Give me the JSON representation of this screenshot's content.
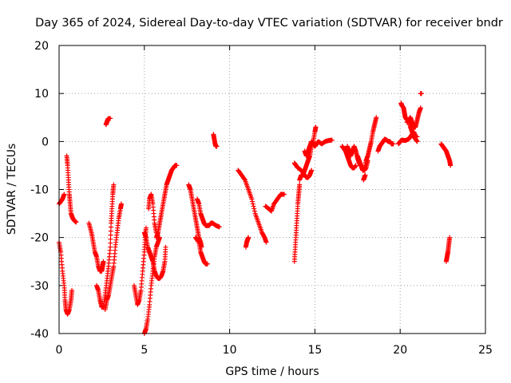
{
  "chart_data": {
    "type": "scatter",
    "title": "Day 365 of 2024, Sidereal Day-to-day VTEC variation (SDTVAR) for receiver bndr",
    "xlabel": "GPS time / hours",
    "ylabel": "SDTVAR / TECUs",
    "xlim": [
      0,
      25
    ],
    "ylim": [
      -40,
      20
    ],
    "xticks": [
      0,
      5,
      10,
      15,
      20,
      25
    ],
    "yticks": [
      -40,
      -30,
      -20,
      -10,
      0,
      10,
      20
    ],
    "xtick_labels": [
      "0",
      "5",
      "10",
      "15",
      "20",
      "25"
    ],
    "ytick_labels": [
      "-40",
      "-30",
      "-20",
      "-10",
      "0",
      "10",
      "20"
    ],
    "grid": true,
    "marker": "+",
    "series_color": "#ff0000",
    "tracks": [
      [
        [
          0.0,
          -13
        ],
        [
          0.1,
          -12.5
        ],
        [
          0.2,
          -12
        ],
        [
          0.3,
          -11
        ]
      ],
      [
        [
          0.0,
          -21
        ],
        [
          0.1,
          -23
        ],
        [
          0.2,
          -27
        ],
        [
          0.3,
          -30
        ],
        [
          0.35,
          -33
        ],
        [
          0.4,
          -35
        ],
        [
          0.5,
          -36
        ],
        [
          0.6,
          -35
        ],
        [
          0.7,
          -33
        ],
        [
          0.75,
          -31
        ]
      ],
      [
        [
          0.45,
          -3
        ],
        [
          0.5,
          -5
        ],
        [
          0.55,
          -8
        ],
        [
          0.6,
          -11
        ],
        [
          0.65,
          -13
        ],
        [
          0.7,
          -15
        ],
        [
          0.8,
          -16
        ],
        [
          0.9,
          -16.5
        ],
        [
          1.0,
          -16.8
        ]
      ],
      [
        [
          1.75,
          -17
        ],
        [
          1.9,
          -19
        ],
        [
          2.0,
          -21
        ],
        [
          2.1,
          -23
        ],
        [
          2.2,
          -24
        ],
        [
          2.3,
          -26
        ],
        [
          2.4,
          -27
        ],
        [
          2.5,
          -27
        ],
        [
          2.55,
          -26
        ],
        [
          2.6,
          -25
        ]
      ],
      [
        [
          2.2,
          -30
        ],
        [
          2.3,
          -31
        ],
        [
          2.4,
          -33
        ],
        [
          2.5,
          -34.5
        ],
        [
          2.6,
          -34.5
        ],
        [
          2.7,
          -32
        ],
        [
          2.8,
          -29
        ],
        [
          2.9,
          -26
        ],
        [
          3.0,
          -22
        ],
        [
          3.05,
          -17
        ],
        [
          3.1,
          -14
        ],
        [
          3.15,
          -11
        ],
        [
          3.2,
          -9
        ]
      ],
      [
        [
          2.7,
          -35
        ],
        [
          2.8,
          -33
        ],
        [
          2.9,
          -32
        ],
        [
          3.0,
          -30
        ],
        [
          3.1,
          -28
        ],
        [
          3.2,
          -26
        ],
        [
          3.3,
          -22
        ],
        [
          3.4,
          -19
        ],
        [
          3.5,
          -16
        ],
        [
          3.6,
          -14
        ],
        [
          3.65,
          -13
        ]
      ],
      [
        [
          2.75,
          3.5
        ],
        [
          2.8,
          4
        ],
        [
          2.85,
          4.5
        ],
        [
          2.9,
          4.8
        ],
        [
          3.0,
          4.8
        ]
      ],
      [
        [
          4.4,
          -30
        ],
        [
          4.5,
          -32
        ],
        [
          4.6,
          -34
        ],
        [
          4.7,
          -33
        ],
        [
          4.8,
          -31
        ],
        [
          4.9,
          -27
        ],
        [
          5.0,
          -23
        ],
        [
          5.05,
          -20
        ],
        [
          5.1,
          -18
        ]
      ],
      [
        [
          5.0,
          -40
        ],
        [
          5.1,
          -39
        ],
        [
          5.2,
          -37
        ],
        [
          5.3,
          -34
        ],
        [
          5.4,
          -30
        ],
        [
          5.5,
          -27
        ],
        [
          5.6,
          -24
        ],
        [
          5.7,
          -22
        ],
        [
          5.8,
          -21
        ],
        [
          5.9,
          -20
        ]
      ],
      [
        [
          5.0,
          -19
        ],
        [
          5.1,
          -20
        ],
        [
          5.2,
          -22
        ],
        [
          5.3,
          -23
        ],
        [
          5.4,
          -24
        ],
        [
          5.5,
          -25
        ],
        [
          5.6,
          -27
        ],
        [
          5.7,
          -28
        ],
        [
          5.8,
          -28.5
        ],
        [
          5.9,
          -28.5
        ],
        [
          6.0,
          -28
        ],
        [
          6.1,
          -27
        ],
        [
          6.2,
          -25
        ],
        [
          6.25,
          -22
        ]
      ],
      [
        [
          5.25,
          -14
        ],
        [
          5.3,
          -12
        ],
        [
          5.4,
          -11
        ],
        [
          5.5,
          -13
        ],
        [
          5.6,
          -17
        ],
        [
          5.7,
          -19
        ]
      ],
      [
        [
          5.7,
          -20
        ],
        [
          5.8,
          -19
        ],
        [
          5.9,
          -17
        ],
        [
          6.0,
          -15
        ],
        [
          6.1,
          -13
        ],
        [
          6.2,
          -11
        ],
        [
          6.3,
          -9
        ],
        [
          6.4,
          -8
        ],
        [
          6.5,
          -7
        ],
        [
          6.6,
          -6
        ],
        [
          6.7,
          -5.5
        ],
        [
          6.8,
          -5
        ],
        [
          6.9,
          -5
        ]
      ],
      [
        [
          7.6,
          -9
        ],
        [
          7.7,
          -10
        ],
        [
          7.8,
          -12
        ],
        [
          7.9,
          -14
        ],
        [
          8.0,
          -16
        ],
        [
          8.1,
          -18
        ],
        [
          8.2,
          -20
        ],
        [
          8.3,
          -21
        ],
        [
          8.35,
          -22
        ]
      ],
      [
        [
          8.0,
          -20
        ],
        [
          8.1,
          -20.5
        ],
        [
          8.2,
          -21
        ],
        [
          8.3,
          -23
        ],
        [
          8.4,
          -24
        ],
        [
          8.5,
          -25
        ],
        [
          8.6,
          -25.5
        ],
        [
          8.7,
          -25.5
        ]
      ],
      [
        [
          8.1,
          -12
        ],
        [
          8.2,
          -13
        ],
        [
          8.3,
          -15
        ],
        [
          8.4,
          -16
        ],
        [
          8.5,
          -17
        ],
        [
          8.6,
          -17.5
        ],
        [
          8.7,
          -17.5
        ],
        [
          8.8,
          -17.5
        ],
        [
          8.9,
          -17
        ],
        [
          9.0,
          -17
        ],
        [
          9.2,
          -17.5
        ],
        [
          9.4,
          -17.8
        ]
      ],
      [
        [
          9.05,
          1.5
        ],
        [
          9.1,
          0.5
        ],
        [
          9.15,
          -0.5
        ],
        [
          9.2,
          -1
        ],
        [
          9.25,
          -1
        ]
      ],
      [
        [
          10.5,
          -6
        ],
        [
          10.7,
          -7
        ],
        [
          10.9,
          -8
        ],
        [
          11.1,
          -10
        ],
        [
          11.3,
          -12
        ],
        [
          11.5,
          -15
        ],
        [
          11.7,
          -17
        ],
        [
          11.9,
          -19
        ],
        [
          12.05,
          -20
        ],
        [
          12.15,
          -21
        ]
      ],
      [
        [
          10.95,
          -22
        ],
        [
          11.0,
          -21
        ],
        [
          11.05,
          -20.5
        ],
        [
          11.1,
          -20
        ]
      ],
      [
        [
          12.1,
          -13.5
        ],
        [
          12.3,
          -14
        ],
        [
          12.45,
          -14.5
        ],
        [
          12.6,
          -13
        ],
        [
          12.8,
          -12
        ],
        [
          13.0,
          -11
        ],
        [
          13.2,
          -11
        ]
      ],
      [
        [
          13.8,
          -25
        ],
        [
          13.85,
          -22
        ],
        [
          13.9,
          -19
        ],
        [
          13.95,
          -16
        ],
        [
          14.0,
          -13
        ],
        [
          14.05,
          -11
        ],
        [
          14.1,
          -9
        ]
      ],
      [
        [
          13.8,
          -4.5
        ],
        [
          13.9,
          -5
        ],
        [
          14.0,
          -5.5
        ],
        [
          14.2,
          -6
        ],
        [
          14.4,
          -7
        ],
        [
          14.5,
          -7.5
        ],
        [
          14.6,
          -7.5
        ],
        [
          14.7,
          -7
        ],
        [
          14.8,
          -6
        ]
      ],
      [
        [
          14.1,
          -8
        ],
        [
          14.2,
          -7
        ],
        [
          14.3,
          -7
        ],
        [
          14.4,
          -6
        ],
        [
          14.5,
          -5
        ],
        [
          14.6,
          -4
        ],
        [
          14.7,
          -3
        ],
        [
          14.8,
          -1
        ],
        [
          14.9,
          0
        ],
        [
          15.0,
          2
        ],
        [
          15.05,
          3
        ]
      ],
      [
        [
          14.4,
          -2
        ],
        [
          14.5,
          -3
        ],
        [
          14.6,
          -2
        ],
        [
          14.7,
          -1
        ],
        [
          14.8,
          0
        ],
        [
          14.9,
          -0.5
        ],
        [
          15.0,
          -1
        ],
        [
          15.1,
          -0.5
        ],
        [
          15.2,
          0
        ],
        [
          15.4,
          -0.5
        ],
        [
          15.6,
          0
        ],
        [
          15.8,
          0.2
        ],
        [
          16.0,
          0.3
        ]
      ],
      [
        [
          16.6,
          -1
        ],
        [
          16.7,
          -1.5
        ],
        [
          16.8,
          -2
        ],
        [
          16.9,
          -3
        ],
        [
          17.0,
          -4
        ],
        [
          17.1,
          -5
        ],
        [
          17.2,
          -5.5
        ],
        [
          17.3,
          -5.5
        ],
        [
          17.4,
          -5
        ]
      ],
      [
        [
          16.9,
          -1
        ],
        [
          17.0,
          -2
        ],
        [
          17.1,
          -3
        ],
        [
          17.2,
          -2
        ],
        [
          17.3,
          -1
        ],
        [
          17.4,
          -2
        ],
        [
          17.5,
          -3.5
        ],
        [
          17.6,
          -4.5
        ],
        [
          17.7,
          -5
        ],
        [
          17.8,
          -5.5
        ],
        [
          17.9,
          -6
        ],
        [
          18.0,
          -5.5
        ],
        [
          18.1,
          -4
        ]
      ],
      [
        [
          17.85,
          -8
        ],
        [
          17.9,
          -7.5
        ],
        [
          17.95,
          -7
        ]
      ],
      [
        [
          17.5,
          -3
        ],
        [
          17.6,
          -4
        ],
        [
          17.7,
          -5
        ],
        [
          17.8,
          -6
        ],
        [
          17.9,
          -6
        ],
        [
          18.0,
          -4
        ],
        [
          18.1,
          -3
        ],
        [
          18.2,
          -1.5
        ],
        [
          18.3,
          0
        ],
        [
          18.4,
          2
        ],
        [
          18.5,
          3.5
        ],
        [
          18.6,
          5
        ]
      ],
      [
        [
          18.7,
          -2
        ],
        [
          18.8,
          -1
        ],
        [
          18.9,
          -0.5
        ],
        [
          19.0,
          0
        ],
        [
          19.1,
          0.5
        ],
        [
          19.2,
          0.3
        ],
        [
          19.3,
          0
        ],
        [
          19.4,
          0
        ],
        [
          19.5,
          -0.5
        ],
        [
          19.6,
          -0.5
        ]
      ],
      [
        [
          19.9,
          -0.5
        ],
        [
          20.0,
          0
        ],
        [
          20.1,
          0.3
        ],
        [
          20.3,
          0.2
        ],
        [
          20.5,
          0.5
        ],
        [
          20.6,
          1
        ],
        [
          20.7,
          1.5
        ],
        [
          20.8,
          2
        ],
        [
          20.9,
          1
        ],
        [
          21.0,
          1
        ]
      ],
      [
        [
          20.05,
          8
        ],
        [
          20.1,
          7.5
        ],
        [
          20.2,
          7
        ],
        [
          20.25,
          6
        ],
        [
          20.3,
          5
        ],
        [
          20.4,
          4.5
        ],
        [
          20.5,
          4.5
        ],
        [
          20.6,
          5
        ],
        [
          20.7,
          4
        ],
        [
          20.8,
          3
        ],
        [
          20.9,
          3
        ],
        [
          21.0,
          4.5
        ],
        [
          21.1,
          6
        ],
        [
          21.2,
          7
        ]
      ],
      [
        [
          20.4,
          4
        ],
        [
          20.5,
          4.5
        ],
        [
          20.6,
          3
        ],
        [
          20.7,
          2
        ],
        [
          20.8,
          1
        ],
        [
          20.9,
          0.5
        ],
        [
          21.0,
          0
        ]
      ],
      [
        [
          21.2,
          10
        ],
        [
          21.25,
          10
        ]
      ],
      [
        [
          22.4,
          -0.5
        ],
        [
          22.5,
          -1
        ],
        [
          22.6,
          -1.5
        ],
        [
          22.7,
          -2
        ],
        [
          22.8,
          -3
        ],
        [
          22.9,
          -4
        ],
        [
          22.95,
          -5
        ]
      ],
      [
        [
          22.7,
          -25
        ],
        [
          22.75,
          -24
        ],
        [
          22.8,
          -23
        ],
        [
          22.85,
          -21.5
        ],
        [
          22.9,
          -20
        ]
      ]
    ]
  }
}
